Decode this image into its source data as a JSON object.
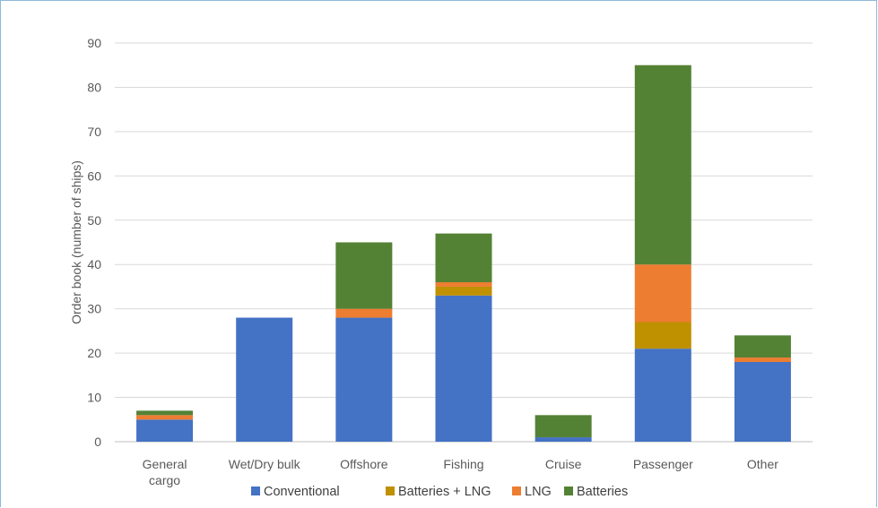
{
  "chart_data": {
    "type": "bar",
    "stacked": true,
    "title": "",
    "xlabel": "",
    "ylabel": "Order book (number of ships)",
    "ylim": [
      0,
      90
    ],
    "yticks": [
      0,
      10,
      20,
      30,
      40,
      50,
      60,
      70,
      80,
      90
    ],
    "grid": true,
    "legend_position": "bottom",
    "categories": [
      "General\ncargo",
      "Wet/Dry bulk",
      "Offshore",
      "Fishing",
      "Cruise",
      "Passenger",
      "Other"
    ],
    "series": [
      {
        "name": "Conventional",
        "color": "#4472c4",
        "values": [
          5,
          28,
          28,
          33,
          1,
          21,
          18
        ]
      },
      {
        "name": "Batteries + LNG",
        "color": "#bf9000",
        "values": [
          0,
          0,
          0,
          2,
          0,
          6,
          0
        ]
      },
      {
        "name": "LNG",
        "color": "#ed7d31",
        "values": [
          1,
          0,
          2,
          1,
          0,
          13,
          1
        ]
      },
      {
        "name": "Batteries",
        "color": "#548235",
        "values": [
          1,
          0,
          15,
          11,
          5,
          45,
          5
        ]
      }
    ]
  }
}
